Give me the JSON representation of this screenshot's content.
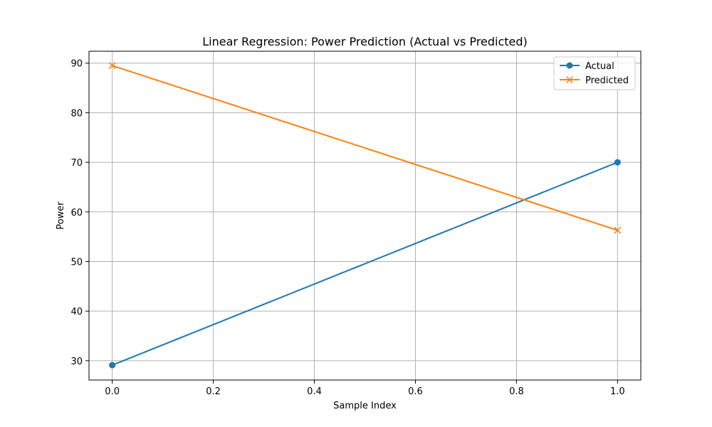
{
  "chart_data": {
    "type": "line",
    "title": "Linear Regression: Power Prediction (Actual vs Predicted)",
    "xlabel": "Sample Index",
    "ylabel": "Power",
    "xlim": [
      -0.046,
      1.046
    ],
    "ylim": [
      26.1,
      92.4
    ],
    "xticks": [
      0.0,
      0.2,
      0.4,
      0.6,
      0.8,
      1.0
    ],
    "xtick_labels": [
      "0.0",
      "0.2",
      "0.4",
      "0.6",
      "0.8",
      "1.0"
    ],
    "yticks": [
      30,
      40,
      50,
      60,
      70,
      80,
      90
    ],
    "ytick_labels": [
      "30",
      "40",
      "50",
      "60",
      "70",
      "80",
      "90"
    ],
    "grid": true,
    "legend_position": "upper right",
    "series": [
      {
        "name": "Actual",
        "x": [
          0,
          1
        ],
        "y": [
          29.1,
          70.0
        ],
        "color": "#1f77b4",
        "marker": "circle"
      },
      {
        "name": "Predicted",
        "x": [
          0,
          1
        ],
        "y": [
          89.5,
          56.3
        ],
        "color": "#ff7f0e",
        "marker": "x"
      }
    ]
  }
}
